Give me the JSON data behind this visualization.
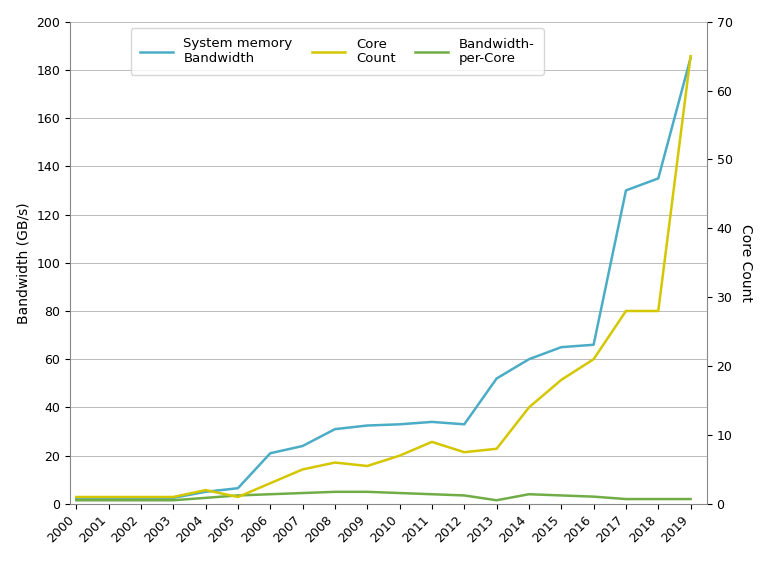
{
  "years": [
    2000,
    2001,
    2002,
    2003,
    2004,
    2005,
    2006,
    2007,
    2008,
    2009,
    2010,
    2011,
    2012,
    2013,
    2014,
    2015,
    2016,
    2017,
    2018,
    2019
  ],
  "bandwidth": [
    2.0,
    2.0,
    2.2,
    2.5,
    5.0,
    6.5,
    21.0,
    24.0,
    31.0,
    32.5,
    33.0,
    34.0,
    33.0,
    52.0,
    60.0,
    65.0,
    66.0,
    130.0,
    135.0,
    185.0
  ],
  "core_count": [
    1.0,
    1.0,
    1.0,
    1.0,
    2.0,
    1.0,
    3.0,
    5.0,
    6.0,
    5.5,
    7.0,
    9.0,
    7.5,
    8.0,
    14.0,
    18.0,
    21.0,
    28.0,
    28.0,
    65.0
  ],
  "bw_per_core": [
    1.5,
    1.5,
    1.5,
    1.5,
    2.5,
    3.5,
    4.0,
    4.5,
    5.0,
    5.0,
    4.5,
    4.0,
    3.5,
    1.5,
    4.0,
    3.5,
    3.0,
    2.0,
    2.0,
    2.0
  ],
  "bandwidth_color": "#4BACC6",
  "core_count_color": "#D4C700",
  "bw_per_core_color": "#70AD47",
  "ylabel_left": "Bandwidth (GB/s)",
  "ylabel_right": "Core Count",
  "ylim_left": [
    0,
    200
  ],
  "ylim_right": [
    0,
    70
  ],
  "yticks_left": [
    0,
    20,
    40,
    60,
    80,
    100,
    120,
    140,
    160,
    180,
    200
  ],
  "yticks_right": [
    0,
    10,
    20,
    30,
    40,
    50,
    60,
    70
  ],
  "legend_labels": [
    "System memory\nBandwidth",
    "Core\nCount",
    "Bandwidth-\nper-Core"
  ],
  "line_width": 1.8,
  "background_color": "#FFFFFF",
  "grid_color": "#BBBBBB",
  "border_color": "#888888"
}
